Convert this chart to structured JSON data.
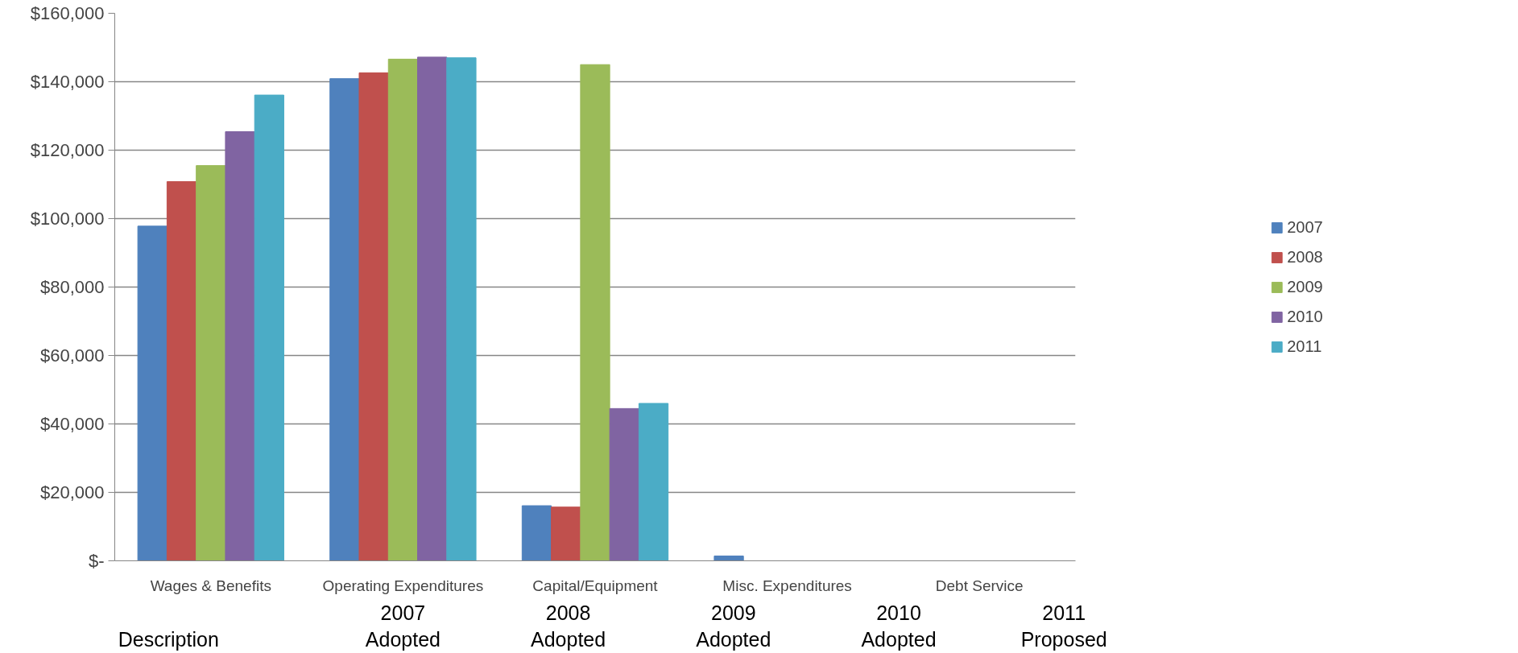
{
  "chart_data": {
    "type": "bar",
    "categories": [
      "Wages & Benefits",
      "Operating Expenditures",
      "Capital/Equipment",
      "Misc. Expenditures",
      "Debt Service"
    ],
    "series": [
      {
        "name": "2007",
        "color": "#4f81bd",
        "values": [
          97800,
          140900,
          16100,
          1400,
          0
        ]
      },
      {
        "name": "2008",
        "color": "#c0504d",
        "values": [
          110800,
          142600,
          15700,
          0,
          0
        ]
      },
      {
        "name": "2009",
        "color": "#9bbb59",
        "values": [
          115500,
          146600,
          145000,
          0,
          0
        ]
      },
      {
        "name": "2010",
        "color": "#8064a2",
        "values": [
          125400,
          147200,
          44500,
          0,
          0
        ]
      },
      {
        "name": "2011",
        "color": "#4bacc6",
        "values": [
          136100,
          147000,
          46000,
          0,
          0
        ]
      }
    ],
    "ylim": [
      0,
      160000
    ],
    "yticks": [
      {
        "value": 0,
        "label": "$-"
      },
      {
        "value": 20000,
        "label": "$20,000"
      },
      {
        "value": 40000,
        "label": "$40,000"
      },
      {
        "value": 60000,
        "label": "$60,000"
      },
      {
        "value": 80000,
        "label": "$80,000"
      },
      {
        "value": 100000,
        "label": "$100,000"
      },
      {
        "value": 120000,
        "label": "$120,000"
      },
      {
        "value": 140000,
        "label": "$140,000"
      },
      {
        "value": 160000,
        "label": "$160,000"
      }
    ],
    "grid": "y",
    "legend": "right",
    "annotations": [
      "Description",
      "2007\nAdopted",
      "2008\nAdopted",
      "2009\nAdopted",
      "2010\nAdopted",
      "2011\nProposed"
    ]
  }
}
